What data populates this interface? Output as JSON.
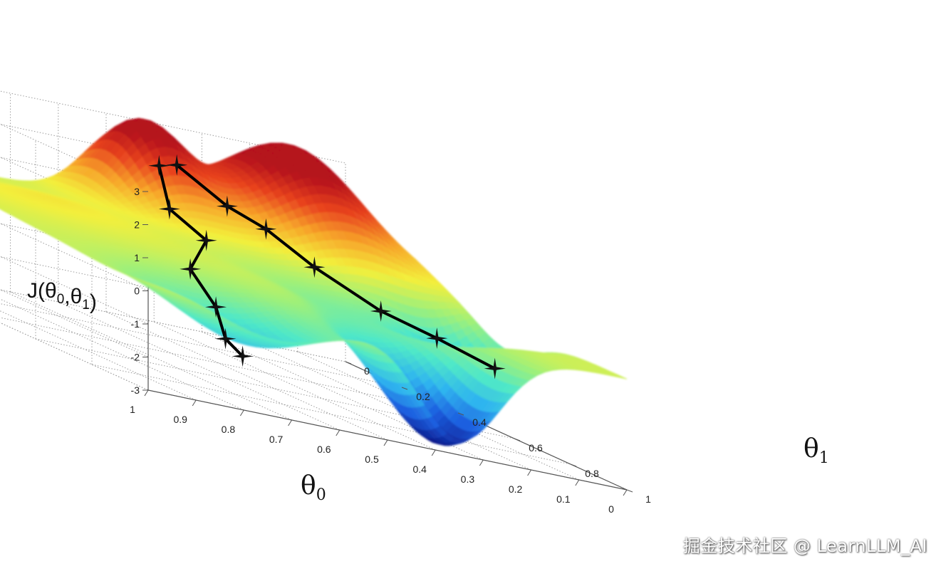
{
  "chart_data": {
    "type": "surface",
    "zlabel": "J(θ0,θ1)",
    "xlabel": "θ0",
    "ylabel": "θ1",
    "x_ticks": [
      "1",
      "0.9",
      "0.8",
      "0.7",
      "0.6",
      "0.5",
      "0.4",
      "0.3",
      "0.2",
      "0.1",
      "0"
    ],
    "y_ticks": [
      "0",
      "0.2",
      "0.4",
      "0.6",
      "0.8",
      "1"
    ],
    "z_ticks": [
      "3",
      "2",
      "1",
      "0",
      "-1",
      "-2",
      "-3"
    ],
    "xlim": [
      0,
      1
    ],
    "ylim": [
      0,
      1
    ],
    "zlim": [
      -3,
      3
    ],
    "grid": true,
    "colormap": [
      "#0b1a8c",
      "#1e5fe0",
      "#2fb5ef",
      "#4fe8c8",
      "#9ef07a",
      "#f3ef3c",
      "#f7a52a",
      "#e8421f",
      "#b5121b"
    ],
    "series": [
      {
        "values": [
          {
            "x": 0.46,
            "y": 0.12,
            "z": 2.0
          },
          {
            "x": 0.45,
            "y": 0.14,
            "z": 0.8
          },
          {
            "x": 0.42,
            "y": 0.22,
            "z": 0.25
          },
          {
            "x": 0.43,
            "y": 0.18,
            "z": -0.8
          },
          {
            "x": 0.4,
            "y": 0.22,
            "z": -1.7
          },
          {
            "x": 0.38,
            "y": 0.22,
            "z": -2.6
          },
          {
            "x": 0.35,
            "y": 0.23,
            "z": -3.0
          }
        ]
      },
      {
        "values": [
          {
            "x": 0.47,
            "y": 0.2,
            "z": 2.3
          },
          {
            "x": 0.4,
            "y": 0.26,
            "z": 1.5
          },
          {
            "x": 0.36,
            "y": 0.33,
            "z": 1.2
          },
          {
            "x": 0.3,
            "y": 0.4,
            "z": 0.5
          },
          {
            "x": 0.22,
            "y": 0.5,
            "z": -0.2
          },
          {
            "x": 0.15,
            "y": 0.58,
            "z": -0.5
          },
          {
            "x": 0.07,
            "y": 0.65,
            "z": -0.9
          }
        ]
      }
    ]
  },
  "watermark": "掘金技术社区 @ LearnLLM_AI"
}
